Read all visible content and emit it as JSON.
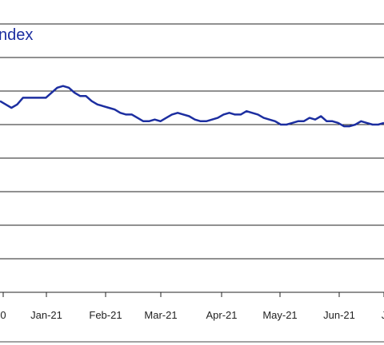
{
  "chart_data": {
    "type": "line",
    "title": "ndex",
    "xlabel": "",
    "ylabel": "",
    "grid": true,
    "ylim": [
      0,
      8
    ],
    "x_ticks": [
      "0",
      "Jan-21",
      "Feb-21",
      "Mar-21",
      "Apr-21",
      "May-21",
      "Jun-21",
      "J"
    ],
    "series": [
      {
        "color": "#1c2ea0",
        "values": [
          [
            0,
            5.7
          ],
          [
            1,
            5.6
          ],
          [
            2,
            5.5
          ],
          [
            3,
            5.6
          ],
          [
            4,
            5.8
          ],
          [
            5,
            5.8
          ],
          [
            6,
            5.8
          ],
          [
            7,
            5.8
          ],
          [
            8,
            5.8
          ],
          [
            9,
            5.95
          ],
          [
            10,
            6.1
          ],
          [
            11,
            6.15
          ],
          [
            12,
            6.1
          ],
          [
            13,
            5.95
          ],
          [
            14,
            5.85
          ],
          [
            15,
            5.85
          ],
          [
            16,
            5.7
          ],
          [
            17,
            5.6
          ],
          [
            18,
            5.55
          ],
          [
            19,
            5.5
          ],
          [
            20,
            5.45
          ],
          [
            21,
            5.35
          ],
          [
            22,
            5.3
          ],
          [
            23,
            5.3
          ],
          [
            24,
            5.2
          ],
          [
            25,
            5.1
          ],
          [
            26,
            5.1
          ],
          [
            27,
            5.15
          ],
          [
            28,
            5.1
          ],
          [
            29,
            5.2
          ],
          [
            30,
            5.3
          ],
          [
            31,
            5.35
          ],
          [
            32,
            5.3
          ],
          [
            33,
            5.25
          ],
          [
            34,
            5.15
          ],
          [
            35,
            5.1
          ],
          [
            36,
            5.1
          ],
          [
            37,
            5.15
          ],
          [
            38,
            5.2
          ],
          [
            39,
            5.3
          ],
          [
            40,
            5.35
          ],
          [
            41,
            5.3
          ],
          [
            42,
            5.3
          ],
          [
            43,
            5.4
          ],
          [
            44,
            5.35
          ],
          [
            45,
            5.3
          ],
          [
            46,
            5.2
          ],
          [
            47,
            5.15
          ],
          [
            48,
            5.1
          ],
          [
            49,
            5.0
          ],
          [
            50,
            5.0
          ],
          [
            51,
            5.05
          ],
          [
            52,
            5.1
          ],
          [
            53,
            5.1
          ],
          [
            54,
            5.2
          ],
          [
            55,
            5.15
          ],
          [
            56,
            5.25
          ],
          [
            57,
            5.1
          ],
          [
            58,
            5.1
          ],
          [
            59,
            5.05
          ],
          [
            60,
            4.95
          ],
          [
            61,
            4.95
          ],
          [
            62,
            5.0
          ],
          [
            63,
            5.1
          ],
          [
            64,
            5.05
          ],
          [
            65,
            5.0
          ],
          [
            66,
            5.0
          ],
          [
            67,
            5.05
          ]
        ]
      }
    ]
  }
}
